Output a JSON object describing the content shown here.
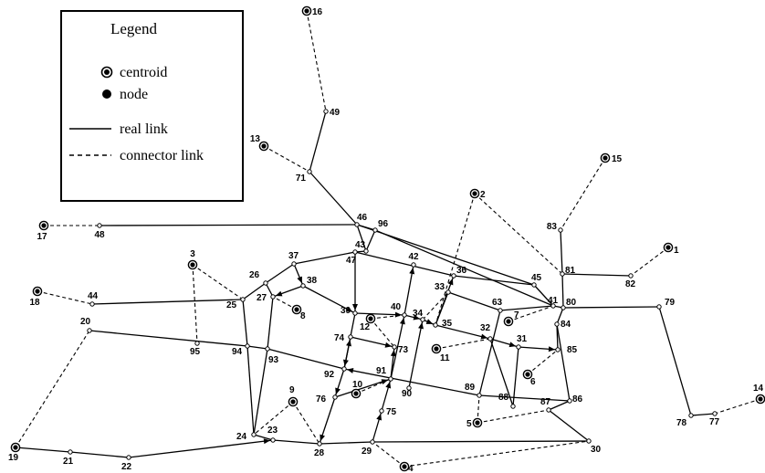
{
  "legend": {
    "title": "Legend",
    "items": [
      {
        "symbol": "centroid",
        "label": "centroid"
      },
      {
        "symbol": "node",
        "label": "node"
      },
      {
        "symbol": "real-link",
        "label": "real link"
      },
      {
        "symbol": "connector-link",
        "label": "connector link"
      }
    ]
  },
  "nodes": [
    {
      "id": "16",
      "type": "centroid"
    },
    {
      "id": "49",
      "type": "node"
    },
    {
      "id": "13",
      "type": "centroid"
    },
    {
      "id": "71",
      "type": "node"
    },
    {
      "id": "15",
      "type": "centroid"
    },
    {
      "id": "2",
      "type": "centroid"
    },
    {
      "id": "17",
      "type": "centroid"
    },
    {
      "id": "48",
      "type": "node"
    },
    {
      "id": "46",
      "type": "node"
    },
    {
      "id": "96",
      "type": "node"
    },
    {
      "id": "83",
      "type": "node"
    },
    {
      "id": "1",
      "type": "centroid"
    },
    {
      "id": "43",
      "type": "node"
    },
    {
      "id": "47",
      "type": "node"
    },
    {
      "id": "42",
      "type": "node"
    },
    {
      "id": "37",
      "type": "node"
    },
    {
      "id": "3",
      "type": "centroid"
    },
    {
      "id": "81",
      "type": "node"
    },
    {
      "id": "82",
      "type": "node"
    },
    {
      "id": "45",
      "type": "node"
    },
    {
      "id": "36",
      "type": "node"
    },
    {
      "id": "18",
      "type": "centroid"
    },
    {
      "id": "44",
      "type": "node"
    },
    {
      "id": "26",
      "type": "node"
    },
    {
      "id": "38",
      "type": "node"
    },
    {
      "id": "33",
      "type": "node"
    },
    {
      "id": "41",
      "type": "node"
    },
    {
      "id": "80",
      "type": "node"
    },
    {
      "id": "79",
      "type": "node"
    },
    {
      "id": "25",
      "type": "node"
    },
    {
      "id": "27",
      "type": "node"
    },
    {
      "id": "63",
      "type": "node"
    },
    {
      "id": "8",
      "type": "centroid"
    },
    {
      "id": "39",
      "type": "node"
    },
    {
      "id": "40",
      "type": "node"
    },
    {
      "id": "34",
      "type": "node"
    },
    {
      "id": "7",
      "type": "centroid"
    },
    {
      "id": "12",
      "type": "centroid"
    },
    {
      "id": "35",
      "type": "node"
    },
    {
      "id": "84",
      "type": "node"
    },
    {
      "id": "20",
      "type": "node"
    },
    {
      "id": "32",
      "type": "node"
    },
    {
      "id": "74",
      "type": "node"
    },
    {
      "id": "31",
      "type": "node"
    },
    {
      "id": "85",
      "type": "node"
    },
    {
      "id": "95",
      "type": "node"
    },
    {
      "id": "94",
      "type": "node"
    },
    {
      "id": "73",
      "type": "node"
    },
    {
      "id": "11",
      "type": "centroid"
    },
    {
      "id": "93",
      "type": "node"
    },
    {
      "id": "6",
      "type": "centroid"
    },
    {
      "id": "92",
      "type": "node"
    },
    {
      "id": "91",
      "type": "node"
    },
    {
      "id": "10",
      "type": "centroid"
    },
    {
      "id": "9",
      "type": "centroid"
    },
    {
      "id": "90",
      "type": "node"
    },
    {
      "id": "89",
      "type": "node"
    },
    {
      "id": "88",
      "type": "node"
    },
    {
      "id": "76",
      "type": "node"
    },
    {
      "id": "86",
      "type": "node"
    },
    {
      "id": "87",
      "type": "node"
    },
    {
      "id": "75",
      "type": "node"
    },
    {
      "id": "5",
      "type": "centroid"
    },
    {
      "id": "14",
      "type": "centroid"
    },
    {
      "id": "24",
      "type": "node"
    },
    {
      "id": "23",
      "type": "node"
    },
    {
      "id": "78",
      "type": "node"
    },
    {
      "id": "77",
      "type": "node"
    },
    {
      "id": "28",
      "type": "node"
    },
    {
      "id": "29",
      "type": "node"
    },
    {
      "id": "30",
      "type": "node"
    },
    {
      "id": "19",
      "type": "centroid"
    },
    {
      "id": "21",
      "type": "node"
    },
    {
      "id": "22",
      "type": "node"
    },
    {
      "id": "4",
      "type": "centroid"
    }
  ],
  "links": [
    {
      "from": "71",
      "to": "49",
      "type": "real"
    },
    {
      "from": "71",
      "to": "46",
      "type": "real"
    },
    {
      "from": "48",
      "to": "46",
      "type": "real"
    },
    {
      "from": "46",
      "to": "96",
      "type": "real"
    },
    {
      "from": "96",
      "to": "41",
      "type": "real"
    },
    {
      "from": "46",
      "to": "45",
      "type": "real"
    },
    {
      "from": "45",
      "to": "41",
      "type": "real"
    },
    {
      "from": "46",
      "to": "43",
      "type": "real"
    },
    {
      "from": "43",
      "to": "47",
      "type": "real"
    },
    {
      "from": "43",
      "to": "96",
      "type": "real"
    },
    {
      "from": "37",
      "to": "47",
      "type": "real"
    },
    {
      "from": "37",
      "to": "26",
      "type": "real"
    },
    {
      "from": "47",
      "to": "36",
      "type": "real"
    },
    {
      "from": "37",
      "to": "38",
      "type": "real"
    },
    {
      "from": "36",
      "to": "45",
      "type": "real"
    },
    {
      "from": "81",
      "to": "83",
      "type": "real"
    },
    {
      "from": "81",
      "to": "82",
      "type": "real"
    },
    {
      "from": "81",
      "to": "80",
      "type": "real"
    },
    {
      "from": "80",
      "to": "79",
      "type": "real"
    },
    {
      "from": "79",
      "to": "78",
      "type": "real"
    },
    {
      "from": "78",
      "to": "77",
      "type": "real"
    },
    {
      "from": "41",
      "to": "80",
      "type": "real"
    },
    {
      "from": "80",
      "to": "84",
      "type": "real"
    },
    {
      "from": "84",
      "to": "86",
      "type": "real"
    },
    {
      "from": "86",
      "to": "87",
      "type": "real"
    },
    {
      "from": "87",
      "to": "30",
      "type": "real"
    },
    {
      "from": "30",
      "to": "29",
      "type": "real"
    },
    {
      "from": "29",
      "to": "28",
      "type": "real"
    },
    {
      "from": "28",
      "to": "23",
      "type": "real"
    },
    {
      "from": "23",
      "to": "24",
      "type": "real"
    },
    {
      "from": "24",
      "to": "94",
      "type": "real"
    },
    {
      "from": "94",
      "to": "25",
      "type": "real"
    },
    {
      "from": "25",
      "to": "26",
      "type": "real"
    },
    {
      "from": "26",
      "to": "27",
      "type": "real"
    },
    {
      "from": "44",
      "to": "25",
      "type": "real"
    },
    {
      "from": "20",
      "to": "94",
      "type": "real"
    },
    {
      "from": "94",
      "to": "93",
      "type": "real"
    },
    {
      "from": "93",
      "to": "24",
      "type": "real"
    },
    {
      "from": "93",
      "to": "27",
      "type": "real"
    },
    {
      "from": "38",
      "to": "39",
      "type": "real"
    },
    {
      "from": "39",
      "to": "40",
      "type": "real"
    },
    {
      "from": "40",
      "to": "34",
      "type": "real"
    },
    {
      "from": "34",
      "to": "35",
      "type": "real"
    },
    {
      "from": "35",
      "to": "32",
      "type": "real"
    },
    {
      "from": "32",
      "to": "31",
      "type": "real"
    },
    {
      "from": "31",
      "to": "85",
      "type": "real"
    },
    {
      "from": "38",
      "to": "27",
      "type": "real"
    },
    {
      "from": "47",
      "to": "39",
      "type": "real"
    },
    {
      "from": "39",
      "to": "92",
      "type": "real"
    },
    {
      "from": "92",
      "to": "76",
      "type": "real"
    },
    {
      "from": "76",
      "to": "28",
      "type": "real"
    },
    {
      "from": "42",
      "to": "40",
      "type": "real"
    },
    {
      "from": "40",
      "to": "91",
      "type": "real"
    },
    {
      "from": "91",
      "to": "75",
      "type": "real"
    },
    {
      "from": "75",
      "to": "29",
      "type": "real"
    },
    {
      "from": "33",
      "to": "63",
      "type": "real"
    },
    {
      "from": "63",
      "to": "41",
      "type": "real"
    },
    {
      "from": "33",
      "to": "35",
      "type": "real"
    },
    {
      "from": "35",
      "to": "36",
      "type": "real"
    },
    {
      "from": "34",
      "to": "90",
      "type": "real"
    },
    {
      "from": "74",
      "to": "73",
      "type": "real"
    },
    {
      "from": "74",
      "to": "92",
      "type": "real"
    },
    {
      "from": "93",
      "to": "92",
      "type": "real"
    },
    {
      "from": "92",
      "to": "89",
      "type": "real"
    },
    {
      "from": "89",
      "to": "86",
      "type": "real"
    },
    {
      "from": "76",
      "to": "91",
      "type": "real"
    },
    {
      "from": "91",
      "to": "73",
      "type": "real"
    },
    {
      "from": "63",
      "to": "89",
      "type": "real"
    },
    {
      "from": "32",
      "to": "88",
      "type": "real"
    },
    {
      "from": "88",
      "to": "31",
      "type": "real"
    },
    {
      "from": "84",
      "to": "85",
      "type": "real"
    },
    {
      "from": "19",
      "to": "21",
      "type": "real"
    },
    {
      "from": "21",
      "to": "22",
      "type": "real"
    },
    {
      "from": "22",
      "to": "23",
      "type": "real"
    },
    {
      "from": "16",
      "to": "49",
      "type": "connector"
    },
    {
      "from": "13",
      "to": "71",
      "type": "connector"
    },
    {
      "from": "15",
      "to": "83",
      "type": "connector"
    },
    {
      "from": "2",
      "to": "81",
      "type": "connector"
    },
    {
      "from": "2",
      "to": "35",
      "type": "connector"
    },
    {
      "from": "17",
      "to": "48",
      "type": "connector"
    },
    {
      "from": "1",
      "to": "82",
      "type": "connector"
    },
    {
      "from": "3",
      "to": "95",
      "type": "connector"
    },
    {
      "from": "3",
      "to": "25",
      "type": "connector"
    },
    {
      "from": "18",
      "to": "44",
      "type": "connector"
    },
    {
      "from": "8",
      "to": "27",
      "type": "connector"
    },
    {
      "from": "7",
      "to": "41",
      "type": "connector"
    },
    {
      "from": "12",
      "to": "40",
      "type": "connector"
    },
    {
      "from": "12",
      "to": "73",
      "type": "connector"
    },
    {
      "from": "11",
      "to": "32",
      "type": "connector"
    },
    {
      "from": "6",
      "to": "85",
      "type": "connector"
    },
    {
      "from": "10",
      "to": "91",
      "type": "connector"
    },
    {
      "from": "9",
      "to": "24",
      "type": "connector"
    },
    {
      "from": "9",
      "to": "28",
      "type": "connector"
    },
    {
      "from": "5",
      "to": "87",
      "type": "connector"
    },
    {
      "from": "5",
      "to": "89",
      "type": "connector"
    },
    {
      "from": "14",
      "to": "77",
      "type": "connector"
    },
    {
      "from": "19",
      "to": "20",
      "type": "connector"
    },
    {
      "from": "4",
      "to": "29",
      "type": "connector"
    },
    {
      "from": "4",
      "to": "30",
      "type": "connector"
    },
    {
      "from": "34",
      "to": "33",
      "type": "connector"
    }
  ],
  "arrows": [
    {
      "at": "38",
      "from": "37"
    },
    {
      "at": "27",
      "from": "38"
    },
    {
      "at": "39",
      "from": "38"
    },
    {
      "at": "40",
      "from": "39"
    },
    {
      "at": "34",
      "from": "40"
    },
    {
      "at": "35",
      "from": "34"
    },
    {
      "at": "32",
      "from": "35"
    },
    {
      "at": "31",
      "from": "32"
    },
    {
      "at": "85",
      "from": "31"
    },
    {
      "at": "92",
      "from": "39"
    },
    {
      "at": "39",
      "from": "47"
    },
    {
      "at": "76",
      "from": "92"
    },
    {
      "at": "28",
      "from": "76"
    },
    {
      "at": "42",
      "from": "40"
    },
    {
      "at": "40",
      "from": "91"
    },
    {
      "at": "91",
      "from": "75"
    },
    {
      "at": "75",
      "from": "29"
    },
    {
      "at": "36",
      "from": "35"
    },
    {
      "at": "34",
      "from": "90"
    },
    {
      "at": "73",
      "from": "74"
    },
    {
      "at": "74",
      "from": "92"
    },
    {
      "at": "92",
      "from": "89"
    },
    {
      "at": "91",
      "from": "76"
    },
    {
      "at": "73",
      "from": "91"
    },
    {
      "at": "23",
      "from": "22"
    }
  ]
}
